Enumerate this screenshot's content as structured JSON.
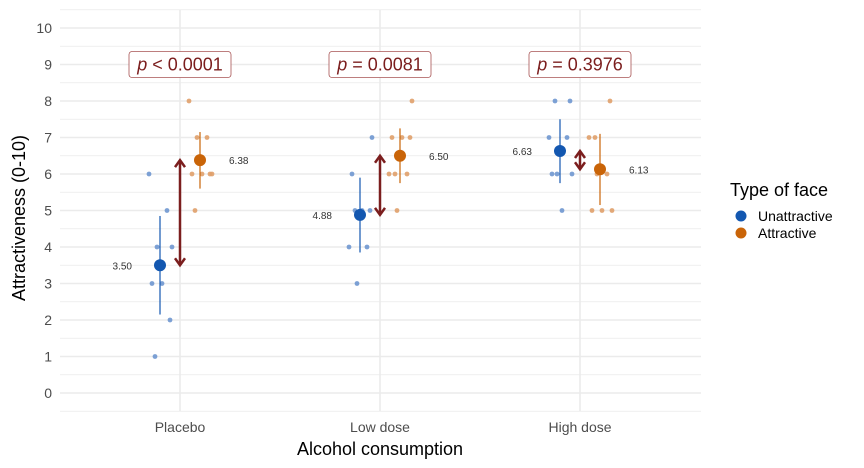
{
  "chart_data": {
    "type": "scatter",
    "xlabel": "Alcohol consumption",
    "ylabel": "Attractiveness (0-10)",
    "categories": [
      "Placebo",
      "Low dose",
      "High dose"
    ],
    "ylim": [
      -0.5,
      10.5
    ],
    "yticks": [
      0,
      1,
      2,
      3,
      4,
      5,
      6,
      7,
      8,
      9,
      10
    ],
    "grid": true,
    "legend": {
      "title": "Type of face",
      "placement": "right",
      "entries": [
        {
          "name": "Unattractive",
          "color": "#1357b0"
        },
        {
          "name": "Attractive",
          "color": "#c96408"
        }
      ]
    },
    "series": [
      {
        "name": "Unattractive",
        "color": "#1357b0",
        "raw_color": "#6f97d0",
        "means": [
          3.5,
          4.88,
          6.63
        ],
        "mean_labels": [
          "3.50",
          "4.88",
          "6.63"
        ],
        "ci_low": [
          2.15,
          3.85,
          5.75
        ],
        "ci_high": [
          4.85,
          5.9,
          7.5
        ],
        "raw_points": [
          [
            6,
            5,
            4,
            4,
            3,
            3,
            2,
            1
          ],
          [
            7,
            6,
            5,
            5,
            5,
            4,
            4,
            3
          ],
          [
            8,
            8,
            7,
            7,
            6,
            6,
            6,
            5
          ]
        ]
      },
      {
        "name": "Attractive",
        "color": "#c96408",
        "raw_color": "#e0a06a",
        "means": [
          6.38,
          6.5,
          6.13
        ],
        "mean_labels": [
          "6.38",
          "6.50",
          "6.13"
        ],
        "ci_low": [
          5.6,
          5.75,
          5.15
        ],
        "ci_high": [
          7.15,
          7.25,
          7.1
        ],
        "raw_points": [
          [
            8,
            7,
            7,
            6,
            6,
            6,
            6,
            5
          ],
          [
            8,
            7,
            7,
            7,
            6,
            6,
            6,
            5
          ],
          [
            8,
            7,
            7,
            6,
            6,
            5,
            5,
            5
          ]
        ]
      }
    ],
    "annotations": {
      "p_values": [
        {
          "prefix": "p",
          "text": " < 0.0001"
        },
        {
          "prefix": "p",
          "text": " = 0.0081"
        },
        {
          "prefix": "p",
          "text": " = 0.3976"
        }
      ],
      "p_label_y": 9,
      "arrow_color": "#7b1e1e"
    }
  }
}
